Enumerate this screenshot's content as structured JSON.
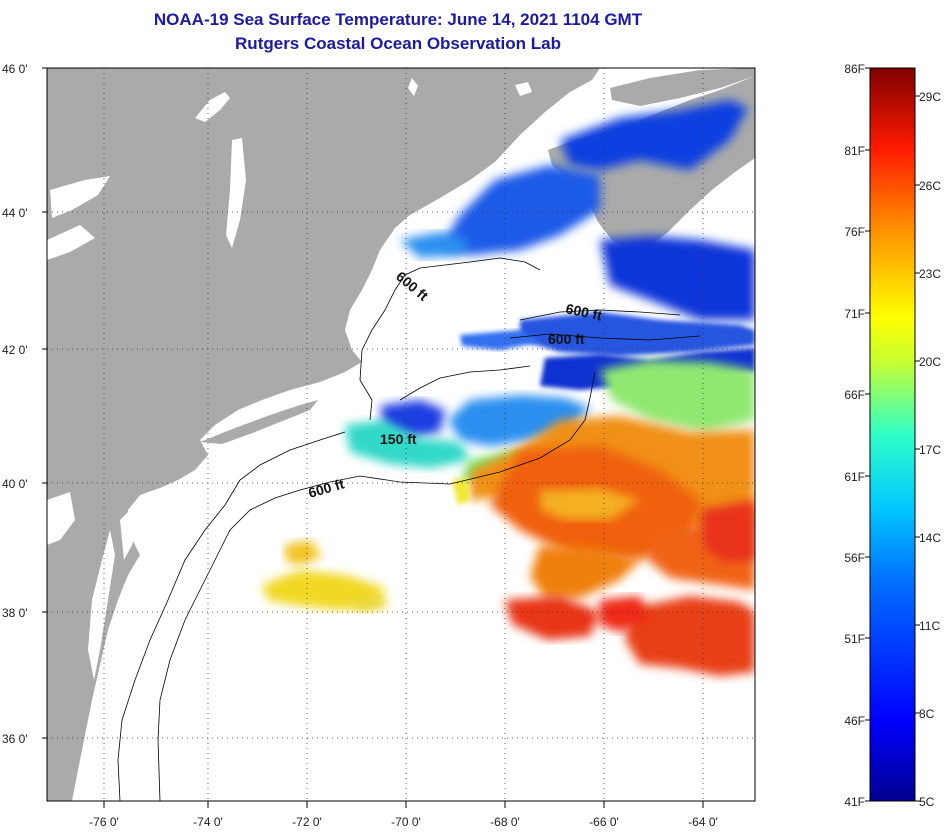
{
  "header": {
    "title": "NOAA-19 Sea Surface Temperature:  June 14, 2021 1104 GMT",
    "subtitle": "Rutgers Coastal Ocean Observation Lab"
  },
  "map": {
    "lat_ticks": [
      "36 0'",
      "38 0'",
      "40 0'",
      "42 0'",
      "44 0'",
      "46 0'"
    ],
    "lon_ticks": [
      "-76 0'",
      "-74 0'",
      "-72 0'",
      "-70 0'",
      "-68 0'",
      "-66 0'",
      "-64 0'"
    ],
    "contour_labels": [
      "600 ft",
      "600 ft",
      "600 ft",
      "150 ft",
      "600 ft"
    ]
  },
  "colorbar": {
    "fahrenheit_labels": [
      "86F",
      "81F",
      "76F",
      "71F",
      "66F",
      "61F",
      "56F",
      "51F",
      "46F",
      "41F"
    ],
    "celsius_labels": [
      "29C",
      "26C",
      "23C",
      "20C",
      "17C",
      "14C",
      "11C",
      "8C",
      "5C"
    ]
  },
  "colors": {
    "title": "#1a1aa6",
    "land": "#aaaaaa",
    "cold": "#1030d0",
    "warm": "#ee3311"
  }
}
